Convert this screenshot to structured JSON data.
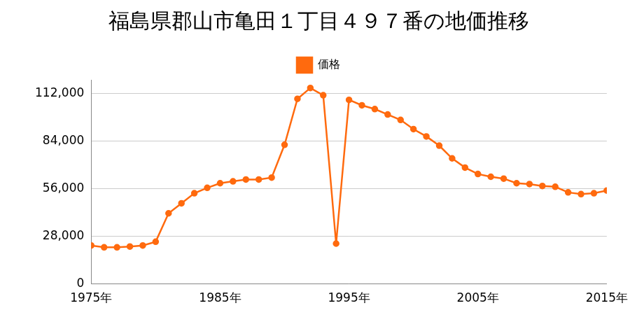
{
  "chart_data": {
    "type": "line",
    "title": "福島県郡山市亀田１丁目４９７番の地価推移",
    "categories": [
      "1975年",
      null,
      null,
      null,
      null,
      null,
      null,
      null,
      null,
      null,
      "1985年",
      null,
      null,
      null,
      null,
      null,
      null,
      null,
      null,
      null,
      "1995年",
      null,
      null,
      null,
      null,
      null,
      null,
      null,
      null,
      null,
      "2005年",
      null,
      null,
      null,
      null,
      null,
      null,
      null,
      null,
      null,
      "2015年"
    ],
    "series": [
      {
        "name": "価格",
        "color": "#ff6a0e",
        "marker": "circle",
        "line_style": "solid",
        "values": [
          22600,
          21500,
          21500,
          22000,
          22600,
          24800,
          41500,
          47400,
          53300,
          56500,
          59200,
          60300,
          61400,
          61400,
          62500,
          81800,
          108800,
          115200,
          110900,
          23700,
          108200,
          105000,
          102800,
          99600,
          96400,
          91000,
          86700,
          81300,
          73800,
          68400,
          64600,
          63000,
          61900,
          59200,
          58700,
          57600,
          57100,
          53800,
          52800,
          53300,
          54900
        ]
      }
    ],
    "ylim": [
      0,
      120000
    ],
    "yticks": [
      0,
      {
        "value": 28000,
        "label": "28,000"
      },
      {
        "value": 56000,
        "label": "56,000"
      },
      {
        "value": 84000,
        "label": "84,000"
      },
      {
        "value": 112000,
        "label": "112,000"
      }
    ],
    "grid": true,
    "legend": "top"
  }
}
